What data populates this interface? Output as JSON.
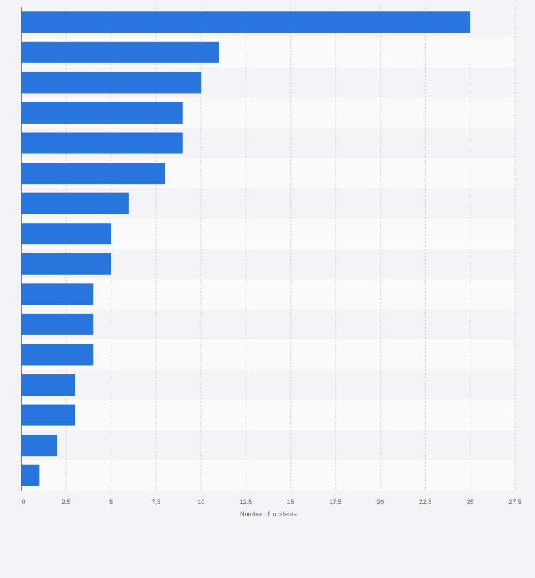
{
  "chart_data": {
    "type": "bar",
    "orientation": "horizontal",
    "categories": [
      "",
      "",
      "",
      "",
      "",
      "",
      "",
      "",
      "",
      "",
      "",
      "",
      "",
      "",
      "",
      ""
    ],
    "values": [
      25,
      11,
      10,
      9,
      9,
      8,
      6,
      5,
      5,
      4,
      4,
      4,
      3,
      3,
      2,
      1
    ],
    "xlabel": "Number of incidents",
    "ylabel": "",
    "xlim": [
      0,
      27.5
    ],
    "ticks": [
      "0",
      "2.5",
      "5",
      "7.5",
      "10",
      "12.5",
      "15",
      "17.5",
      "20",
      "22.5",
      "25",
      "27.5"
    ],
    "grid": true,
    "bar_color": "#2876dd",
    "band_colors": [
      "#f4f4f6",
      "#fafafa"
    ]
  }
}
